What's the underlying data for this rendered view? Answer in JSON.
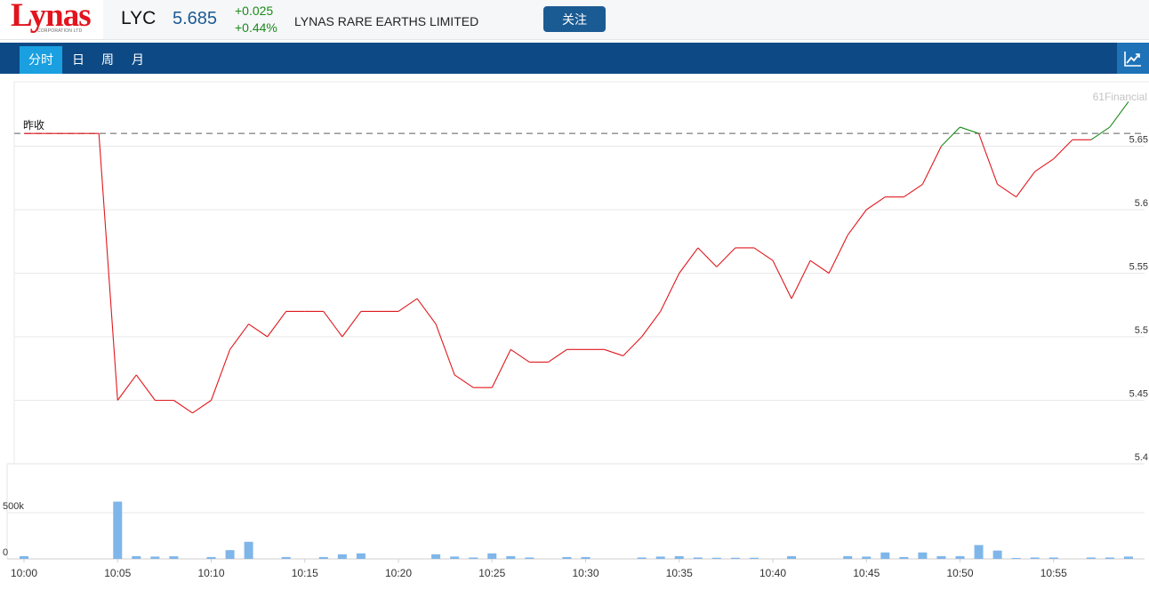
{
  "header": {
    "logo_text": "Lynas",
    "logo_subtext": "CORPORATION LTD",
    "ticker": "LYC",
    "price": "5.685",
    "change": "+0.025",
    "change_pct": "+0.44%",
    "company": "LYNAS RARE EARTHS LIMITED",
    "follow_label": "关注"
  },
  "tabs": [
    {
      "label": "分时",
      "active": true
    },
    {
      "label": "日",
      "active": false
    },
    {
      "label": "周",
      "active": false
    },
    {
      "label": "月",
      "active": false
    }
  ],
  "chart_toggle_icon": "line-chart-icon",
  "colors": {
    "up": "#1a8a1a",
    "down": "#e0181e",
    "volume": "#7fb6ea",
    "nav": "#0d4a85",
    "tab_active": "#1aa0e0"
  },
  "watermark": "61Financial",
  "chart_data": {
    "type": "line",
    "title": "",
    "prev_close_label": "昨收",
    "prev_close": 5.66,
    "ylim": [
      5.4,
      5.69
    ],
    "y_ticks": [
      5.65,
      5.6,
      5.55,
      5.5,
      5.45,
      5.4
    ],
    "x_tick_labels": [
      "10:00",
      "10:05",
      "10:10",
      "10:15",
      "10:20",
      "10:25",
      "10:30",
      "10:35",
      "10:40",
      "10:45",
      "10:50",
      "10:55"
    ],
    "x_minutes": [
      0,
      1,
      2,
      3,
      4,
      5,
      6,
      7,
      8,
      9,
      10,
      11,
      12,
      13,
      14,
      15,
      16,
      17,
      18,
      19,
      20,
      21,
      22,
      23,
      24,
      25,
      26,
      27,
      28,
      29,
      30,
      31,
      32,
      33,
      34,
      35,
      36,
      37,
      38,
      39,
      40,
      41,
      42,
      43,
      44,
      45,
      46,
      47,
      48,
      49,
      50,
      51,
      52,
      53,
      54,
      55,
      56,
      57,
      58,
      59
    ],
    "price": [
      5.66,
      5.66,
      5.66,
      5.66,
      5.66,
      5.45,
      5.47,
      5.45,
      5.45,
      5.44,
      5.45,
      5.49,
      5.51,
      5.5,
      5.52,
      5.52,
      5.52,
      5.5,
      5.52,
      5.52,
      5.52,
      5.53,
      5.51,
      5.47,
      5.46,
      5.46,
      5.49,
      5.48,
      5.48,
      5.49,
      5.49,
      5.49,
      5.485,
      5.5,
      5.52,
      5.55,
      5.57,
      5.555,
      5.57,
      5.57,
      5.56,
      5.53,
      5.56,
      5.55,
      5.58,
      5.6,
      5.61,
      5.61,
      5.62,
      5.65,
      5.665,
      5.66,
      5.62,
      5.61,
      5.63,
      5.64,
      5.655,
      5.655,
      5.665,
      5.685
    ],
    "volume_ticks": [
      "500k",
      "0"
    ],
    "volume_max": 600000,
    "volume": [
      30000,
      0,
      0,
      0,
      0,
      620000,
      30000,
      25000,
      28000,
      0,
      20000,
      95000,
      185000,
      0,
      20000,
      0,
      20000,
      50000,
      60000,
      0,
      0,
      0,
      50000,
      25000,
      15000,
      60000,
      30000,
      15000,
      0,
      20000,
      20000,
      0,
      0,
      15000,
      25000,
      30000,
      15000,
      12000,
      12000,
      12000,
      0,
      30000,
      0,
      0,
      30000,
      25000,
      70000,
      20000,
      70000,
      30000,
      30000,
      150000,
      90000,
      10000,
      15000,
      15000,
      0,
      15000,
      15000,
      25000
    ]
  }
}
